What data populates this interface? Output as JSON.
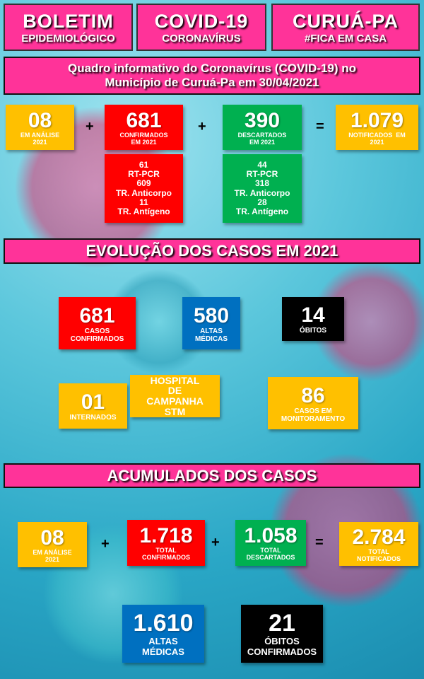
{
  "header": [
    {
      "title": "BOLETIM",
      "subtitle": "EPIDEMIOLÓGICO"
    },
    {
      "title": "COVID-19",
      "subtitle": "CORONAVÍRUS"
    },
    {
      "title": "CURUÁ-PA",
      "subtitle": "#FICA EM CASA"
    }
  ],
  "info_banner": {
    "line1": "Quadro informativo do Coronavírus (COVID-19) no",
    "line2": "Município de Curuá-Pa em 30/04/2021"
  },
  "row2021": {
    "analise": {
      "value": "08",
      "label1": "EM ANÁLISE",
      "label2": "2021"
    },
    "confirmados": {
      "value": "681",
      "label1": "CONFIRMADOS",
      "label2": "EM 2021"
    },
    "confirmados_detail": [
      "61",
      "RT-PCR",
      "609",
      "TR. Anticorpo",
      "11",
      "TR. Antígeno"
    ],
    "descartados": {
      "value": "390",
      "label1": "DESCARTADOS",
      "label2": "EM 2021"
    },
    "descartados_detail": [
      "44",
      "RT-PCR",
      "318",
      "TR. Anticorpo",
      "28",
      "TR. Antígeno"
    ],
    "notificados": {
      "value": "1.079",
      "label1": "NOTIFICADOS  EM",
      "label2": "2021"
    },
    "ops": [
      "+",
      "+",
      "="
    ]
  },
  "evolucao": {
    "title": "EVOLUÇÃO DOS CASOS EM 2021",
    "confirmados": {
      "value": "681",
      "label1": "CASOS",
      "label2": "CONFIRMADOS"
    },
    "altas": {
      "value": "580",
      "label1": "ALTAS",
      "label2": "MÉDICAS"
    },
    "obitos": {
      "value": "14",
      "label1": "ÓBITOS"
    },
    "internados": {
      "value": "01",
      "label1": "INTERNADOS"
    },
    "hospital": [
      "HOSPITAL",
      "DE",
      "CAMPANHA",
      "STM"
    ],
    "monitoramento": {
      "value": "86",
      "label1": "CASOS EM",
      "label2": "MONITORAMENTO"
    }
  },
  "acumulados": {
    "title": "ACUMULADOS DOS CASOS",
    "analise": {
      "value": "08",
      "label1": "EM ANÁLISE",
      "label2": "2021"
    },
    "confirmados": {
      "value": "1.718",
      "label1": "TOTAL",
      "label2": "CONFIRMADOS"
    },
    "descartados": {
      "value": "1.058",
      "label1": "TOTAL",
      "label2": "DESCARTADOS"
    },
    "notificados": {
      "value": "2.784",
      "label1": "TOTAL",
      "label2": "NOTIFICADOS"
    },
    "altas": {
      "value": "1.610",
      "label1": "ALTAS",
      "label2": "MÉDICAS"
    },
    "obitos": {
      "value": "21",
      "label1": "ÓBITOS",
      "label2": "CONFIRMADOS"
    },
    "ops": [
      "+",
      "+",
      "="
    ]
  },
  "colors": {
    "pink": "#ff3399",
    "yellow": "#ffc000",
    "red": "#ff0000",
    "green": "#00b050",
    "blue": "#0070c0",
    "black": "#000000"
  }
}
